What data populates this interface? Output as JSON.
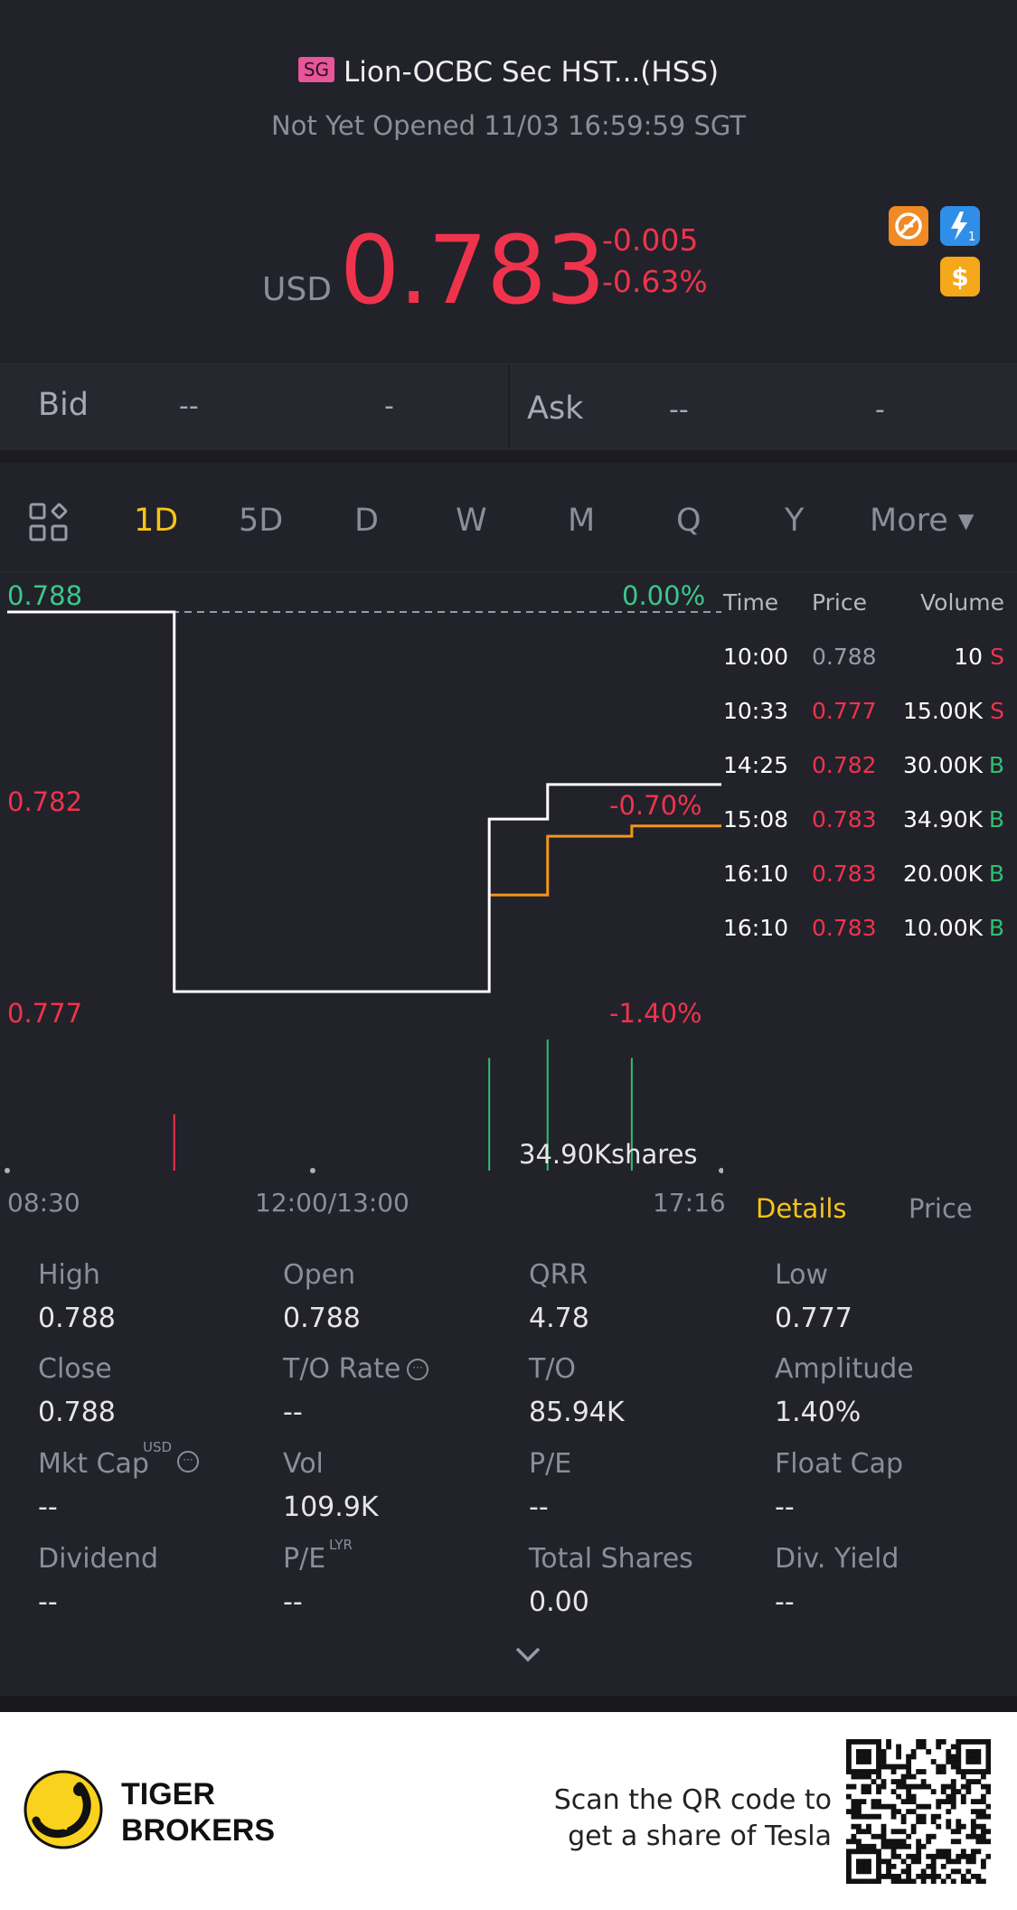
{
  "header": {
    "market_badge": "SG",
    "title": "Lion-OCBC Sec HST...(HSS)",
    "status": "Not Yet Opened 11/03 16:59:59 SGT",
    "currency": "USD",
    "price": "0.783",
    "change": "-0.005",
    "change_pct": "-0.63%",
    "icons": [
      "no-short-icon",
      "lightning-icon",
      "dollar-icon"
    ],
    "lightning_sub": "1"
  },
  "quote": {
    "bid_label": "Bid",
    "bid_price": "--",
    "bid_size": "-",
    "ask_label": "Ask",
    "ask_price": "--",
    "ask_size": "-"
  },
  "period_tabs": [
    "1D",
    "5D",
    "D",
    "W",
    "M",
    "Q",
    "Y"
  ],
  "period_more": "More ▾",
  "active_period": "1D",
  "colors": {
    "up": "#f0334c",
    "down": "#2fbf71",
    "accent": "#f5c518",
    "avg_line": "#f0961e",
    "price_line": "#ffffff"
  },
  "chart_data": {
    "type": "line",
    "y_labels": [
      {
        "value": "0.788",
        "color": "#3ac98a"
      },
      {
        "value": "0.782",
        "color": "#f0334c"
      },
      {
        "value": "0.777",
        "color": "#f0334c"
      }
    ],
    "pct_labels": [
      {
        "value": "0.00%",
        "color": "#3ac98a"
      },
      {
        "value": "-0.70%",
        "color": "#f0334c"
      },
      {
        "value": "-1.40%",
        "color": "#f0334c"
      }
    ],
    "x_labels": [
      "08:30",
      "12:00/13:00",
      "17:16"
    ],
    "ylim": [
      0.777,
      0.788
    ],
    "prev_close": 0.788,
    "price_series": [
      {
        "t": "08:30",
        "v": 0.788
      },
      {
        "t": "10:33",
        "v": 0.777
      },
      {
        "t": "14:25",
        "v": 0.782
      },
      {
        "t": "15:08",
        "v": 0.783
      },
      {
        "t": "17:16",
        "v": 0.783
      }
    ],
    "avg_series": [
      {
        "t": "14:25",
        "v": 0.7798
      },
      {
        "t": "15:08",
        "v": 0.7815
      },
      {
        "t": "16:10",
        "v": 0.7818
      },
      {
        "t": "17:16",
        "v": 0.7818
      }
    ],
    "volume_label": "34.90Kshares",
    "volume_bars": [
      {
        "t": "10:33",
        "v": 15.0,
        "side": "S"
      },
      {
        "t": "14:25",
        "v": 30.0,
        "side": "B"
      },
      {
        "t": "15:08",
        "v": 34.9,
        "side": "B"
      },
      {
        "t": "16:10",
        "v": 30.0,
        "side": "B"
      }
    ]
  },
  "trades": {
    "headers": [
      "Time",
      "Price",
      "Volume"
    ],
    "rows": [
      {
        "time": "10:00",
        "price": "0.788",
        "vol": "10",
        "side": "S",
        "price_color": "#9a9aa4"
      },
      {
        "time": "10:33",
        "price": "0.777",
        "vol": "15.00K",
        "side": "S",
        "price_color": "#f0334c"
      },
      {
        "time": "14:25",
        "price": "0.782",
        "vol": "30.00K",
        "side": "B",
        "price_color": "#f0334c"
      },
      {
        "time": "15:08",
        "price": "0.783",
        "vol": "34.90K",
        "side": "B",
        "price_color": "#f0334c"
      },
      {
        "time": "16:10",
        "price": "0.783",
        "vol": "20.00K",
        "side": "B",
        "price_color": "#f0334c"
      },
      {
        "time": "16:10",
        "price": "0.783",
        "vol": "10.00K",
        "side": "B",
        "price_color": "#f0334c"
      }
    ]
  },
  "detail_tabs": {
    "details": "Details",
    "price": "Price"
  },
  "stats": [
    [
      {
        "label": "High",
        "value": "0.788"
      },
      {
        "label": "Open",
        "value": "0.788"
      },
      {
        "label": "QRR",
        "value": "4.78"
      },
      {
        "label": "Low",
        "value": "0.777"
      }
    ],
    [
      {
        "label": "Close",
        "value": "0.788"
      },
      {
        "label": "T/O Rate",
        "value": "--"
      },
      {
        "label": "T/O",
        "value": "85.94K"
      },
      {
        "label": "Amplitude",
        "value": "1.40%"
      }
    ],
    [
      {
        "label": "Mkt Cap",
        "value": "--"
      },
      {
        "label": "Vol",
        "value": "109.9K"
      },
      {
        "label": "P/E",
        "value": "--"
      },
      {
        "label": "Float Cap",
        "value": "--"
      }
    ],
    [
      {
        "label": "Dividend",
        "value": "--"
      },
      {
        "label": "P/E",
        "value": "--"
      },
      {
        "label": "Total Shares",
        "value": "0.00"
      },
      {
        "label": "Div. Yield",
        "value": "--"
      }
    ]
  ],
  "stat_superscripts": {
    "mkt_cap": "USD",
    "pe_lyr": "LYR"
  },
  "footer": {
    "brand_line1": "TIGER",
    "brand_line2": "BROKERS",
    "promo_line1": "Scan the QR code to",
    "promo_line2": "get a share of Tesla"
  }
}
